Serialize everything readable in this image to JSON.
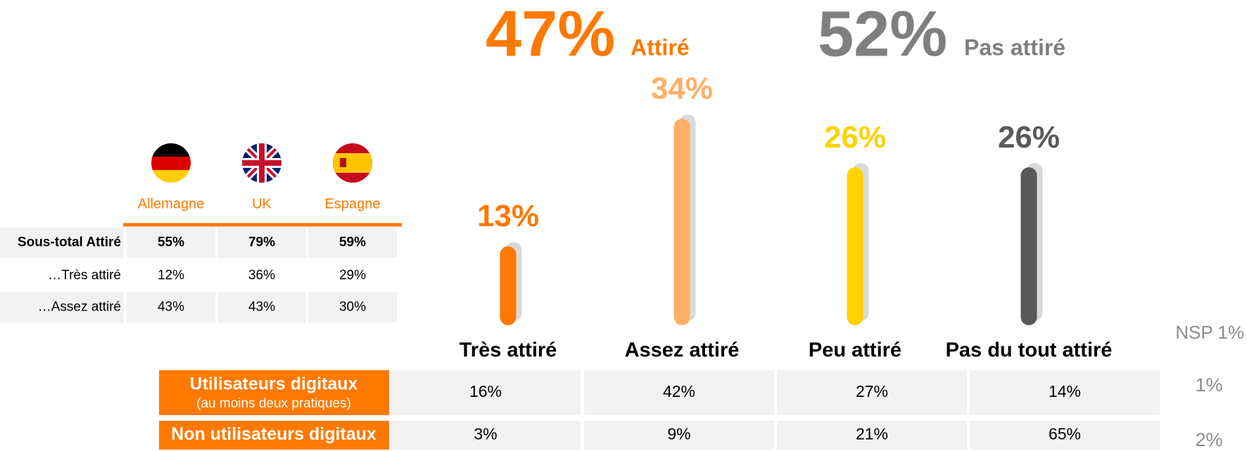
{
  "chart_data": {
    "type": "bar",
    "categories": [
      "Très attiré",
      "Assez attiré",
      "Peu attiré",
      "Pas du tout attiré"
    ],
    "values": [
      13,
      34,
      26,
      26
    ],
    "value_labels": [
      "13%",
      "34%",
      "26%",
      "26%"
    ],
    "colors": [
      "#ff7900",
      "#ffb066",
      "#ffd200",
      "#595959"
    ],
    "groups": [
      {
        "value": 47,
        "label": "47%",
        "name": "Attiré",
        "color": "#ff7900"
      },
      {
        "value": 52,
        "label": "52%",
        "name": "Pas attiré",
        "color": "#7f7f7f"
      }
    ],
    "nsp": "NSP 1%"
  },
  "segment_table": {
    "rows": [
      {
        "label": "Utilisateurs digitaux",
        "sublabel": "(au moins deux pratiques)",
        "cells": [
          "16%",
          "42%",
          "27%",
          "14%"
        ],
        "nsp": "1%"
      },
      {
        "label": "Non utilisateurs digitaux",
        "cells": [
          "3%",
          "9%",
          "21%",
          "65%"
        ],
        "nsp": "2%"
      }
    ]
  },
  "country_table": {
    "columns": [
      "Allemagne",
      "UK",
      "Espagne"
    ],
    "rows": [
      {
        "label": "Sous-total Attiré",
        "cells": [
          "55%",
          "79%",
          "59%"
        ]
      },
      {
        "label": "…Très attiré",
        "cells": [
          "12%",
          "36%",
          "29%"
        ]
      },
      {
        "label": "…Assez attiré",
        "cells": [
          "43%",
          "43%",
          "30%"
        ]
      }
    ]
  }
}
